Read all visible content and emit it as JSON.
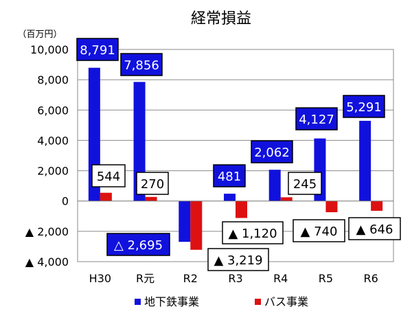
{
  "chart_data": {
    "type": "bar",
    "title": "経常損益",
    "unit_label": "（百万円）",
    "categories": [
      "H30",
      "R元",
      "R2",
      "R3",
      "R4",
      "R5",
      "R6"
    ],
    "series": [
      {
        "name": "地下鉄事業",
        "color": "#1111dd",
        "values": [
          8791,
          7856,
          -2695,
          481,
          2062,
          4127,
          5291
        ],
        "labels": [
          "8,791",
          "7,856",
          "△ 2,695",
          "481",
          "2,062",
          "4,127",
          "5,291"
        ]
      },
      {
        "name": "バス事業",
        "color": "#dd1111",
        "values": [
          544,
          270,
          -3219,
          -1120,
          245,
          -740,
          -646
        ],
        "labels": [
          "544",
          "270",
          "▲ 3,219",
          "▲ 1,120",
          "245",
          "▲ 740",
          "▲ 646"
        ]
      }
    ],
    "ylim": [
      -4000,
      10000
    ],
    "yticks": [
      10000,
      8000,
      6000,
      4000,
      2000,
      0,
      -2000,
      -4000
    ],
    "ytick_labels": [
      "10,000",
      "8,000",
      "6,000",
      "4,000",
      "2,000",
      "0",
      "▲ 2,000",
      "▲ 4,000"
    ],
    "grid": true,
    "legend_position": "bottom"
  }
}
